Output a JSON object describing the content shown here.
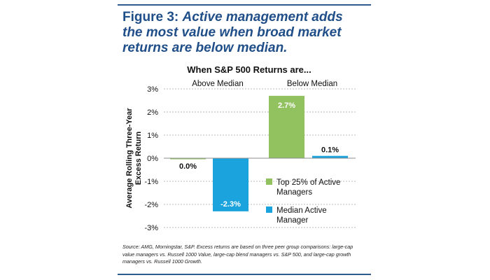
{
  "figure": {
    "label": "Figure 3:",
    "title": "Active management adds the most value when broad market returns are below median."
  },
  "source_note": "Source: AMG, Morningstar, S&P. Excess returns are based on three peer group comparisons: large-cap value managers vs. Russell 1000 Value, large-cap blend managers vs. S&P 500, and large-cap growth managers vs. Russell 1000 Growth.",
  "chart_data": {
    "type": "bar",
    "title": "When S&P 500 Returns are...",
    "ylabel": "Average Rolling Three-Year Excess Return",
    "xlabel": "",
    "categories": [
      "Above Median",
      "Below Median"
    ],
    "series": [
      {
        "name": "Top 25% of Active Managers",
        "color": "#92c15f",
        "values": [
          0.0,
          2.7
        ],
        "labels": [
          "0.0%",
          "2.7%"
        ]
      },
      {
        "name": "Median Active Manager",
        "color": "#1aa3dd",
        "values": [
          -2.3,
          0.1
        ],
        "labels": [
          "-2.3%",
          "0.1%"
        ]
      }
    ],
    "ylim": [
      -3,
      3
    ],
    "yticks": [
      3,
      2,
      1,
      0,
      -1,
      -2,
      -3
    ],
    "ytick_labels": [
      "3%",
      "2%",
      "1%",
      "0%",
      "-1%",
      "-2%",
      "-3%"
    ],
    "grid": true,
    "legend_position": "bottom-right"
  }
}
